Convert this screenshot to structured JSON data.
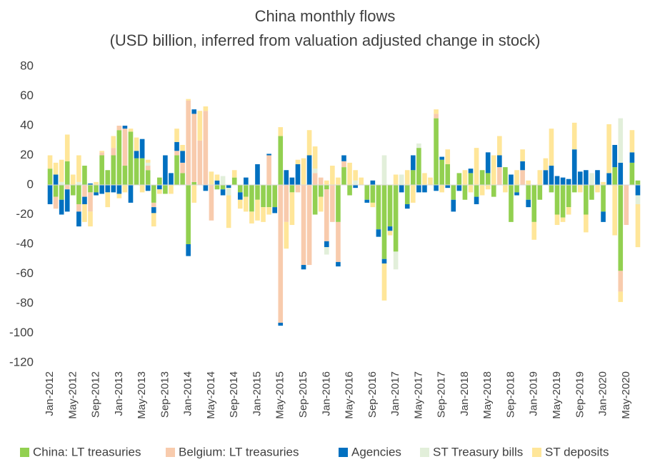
{
  "chart_data": {
    "type": "stacked_bar",
    "title": "China monthly flows",
    "subtitle": "(USD billion, inferred from valuation adjusted change in stock)",
    "categories": [
      "Jan-2012",
      null,
      null,
      null,
      "May-2012",
      null,
      null,
      null,
      "Sep-2012",
      null,
      null,
      null,
      "Jan-2013",
      null,
      null,
      null,
      "May-2013",
      null,
      null,
      null,
      "Sep-2013",
      null,
      null,
      null,
      "Jan-2014",
      null,
      null,
      null,
      "May-2014",
      null,
      null,
      null,
      "Sep-2014",
      null,
      null,
      null,
      "Jan-2015",
      null,
      null,
      null,
      "May-2015",
      null,
      null,
      null,
      "Sep-2015",
      null,
      null,
      null,
      "Jan-2016",
      null,
      null,
      null,
      "May-2016",
      null,
      null,
      null,
      "Sep-2016",
      null,
      null,
      null,
      "Jan-2017",
      null,
      null,
      null,
      "May-2017",
      null,
      null,
      null,
      "Sep-2017",
      null,
      null,
      null,
      "Jan-2018",
      null,
      null,
      null,
      "May-2018",
      null,
      null,
      null,
      "Sep-2018",
      null,
      null,
      null,
      "Jan-2019",
      null,
      null,
      null,
      "May-2019",
      null,
      null,
      null,
      "Sep-2019",
      null,
      null,
      null,
      "Jan-2020",
      null,
      null,
      null,
      "May-2020",
      null,
      null
    ],
    "series": [
      {
        "name": "China: LT treasuries",
        "color": "#92d050",
        "values": [
          11,
          -8,
          -10,
          16,
          -7,
          -13,
          13,
          -5,
          -5,
          20,
          10,
          20,
          37,
          13,
          36,
          18,
          18,
          10,
          -12,
          5,
          -6,
          0,
          20,
          8,
          -40,
          2,
          0,
          0,
          0,
          -3,
          -3,
          0,
          5,
          -5,
          -8,
          -18,
          -10,
          -15,
          -15,
          -15,
          33,
          0,
          -5,
          0,
          0,
          0,
          -20,
          -8,
          -3,
          0,
          -25,
          12,
          -7,
          0,
          0,
          -10,
          -12,
          -30,
          -50,
          -28,
          -45,
          0,
          -13,
          10,
          25,
          0,
          0,
          45,
          17,
          14,
          -10,
          8,
          -10,
          8,
          -8,
          10,
          8,
          -8,
          0,
          12,
          -25,
          -5,
          0,
          -10,
          -25,
          -10,
          0,
          -5,
          -20,
          -22,
          -15,
          -5,
          0,
          -20,
          -10,
          0,
          -18,
          0,
          12,
          -58,
          0,
          15,
          3
        ]
      },
      {
        "name": "Belgium: LT treasuries",
        "color": "#f8cbad",
        "values": [
          0,
          -8,
          0,
          -3,
          0,
          -5,
          -8,
          -13,
          0,
          2,
          0,
          5,
          3,
          25,
          0,
          0,
          0,
          3,
          -3,
          0,
          0,
          0,
          3,
          7,
          57,
          46,
          30,
          50,
          -24,
          0,
          0,
          0,
          0,
          0,
          0,
          0,
          0,
          0,
          20,
          0,
          -93,
          -25,
          0,
          -5,
          -54,
          -54,
          8,
          5,
          -35,
          -25,
          -27,
          4,
          0,
          0,
          0,
          0,
          0,
          0,
          0,
          0,
          0,
          0,
          0,
          0,
          0,
          0,
          0,
          3,
          0,
          0,
          0,
          0,
          0,
          0,
          0,
          0,
          0,
          0,
          12,
          0,
          0,
          0,
          10,
          0,
          0,
          0,
          0,
          0,
          0,
          0,
          0,
          0,
          0,
          0,
          0,
          0,
          0,
          0,
          0,
          -14,
          -27,
          0,
          0
        ]
      },
      {
        "name": "Agencies",
        "color": "#0070c0",
        "values": [
          -13,
          7,
          -10,
          -15,
          0,
          -10,
          -5,
          1,
          -2,
          -6,
          -5,
          -5,
          -6,
          2,
          -12,
          5,
          13,
          -4,
          -4,
          -3,
          20,
          8,
          6,
          8,
          -8,
          3,
          0,
          -4,
          0,
          3,
          -4,
          -2,
          0,
          -5,
          5,
          0,
          14,
          0,
          1,
          -4,
          -2,
          10,
          5,
          14,
          -3,
          20,
          0,
          0,
          -4,
          0,
          -3,
          4,
          0,
          -2,
          0,
          -2,
          3,
          -5,
          -3,
          -3,
          0,
          -5,
          -3,
          10,
          -5,
          -5,
          0,
          -4,
          2,
          -2,
          -8,
          -4,
          0,
          3,
          -5,
          0,
          14,
          0,
          8,
          0,
          7,
          -2,
          6,
          -5,
          0,
          0,
          10,
          13,
          6,
          5,
          4,
          24,
          9,
          10,
          0,
          10,
          -7,
          8,
          15,
          15,
          0,
          7,
          -7
        ]
      },
      {
        "name": "ST Treasury bills",
        "color": "#e2efda",
        "values": [
          0,
          0,
          2,
          0,
          0,
          2,
          0,
          0,
          0,
          0,
          0,
          0,
          0,
          0,
          0,
          0,
          0,
          2,
          0,
          0,
          0,
          0,
          0,
          0,
          0,
          0,
          0,
          0,
          0,
          0,
          6,
          -5,
          0,
          0,
          0,
          0,
          0,
          0,
          0,
          0,
          0,
          0,
          0,
          0,
          0,
          0,
          3,
          0,
          -5,
          0,
          0,
          0,
          0,
          3,
          0,
          0,
          0,
          0,
          20,
          0,
          -12,
          7,
          0,
          0,
          3,
          0,
          0,
          0,
          0,
          0,
          0,
          0,
          0,
          0,
          0,
          0,
          0,
          0,
          0,
          0,
          0,
          0,
          0,
          0,
          0,
          0,
          0,
          0,
          0,
          0,
          0,
          0,
          0,
          0,
          8,
          0,
          0,
          0,
          0,
          30,
          0,
          0,
          -6
        ]
      },
      {
        "name": "ST deposits",
        "color": "#ffe699",
        "values": [
          9,
          8,
          15,
          18,
          7,
          18,
          -12,
          -10,
          2,
          1,
          -10,
          8,
          -3,
          -5,
          2,
          9,
          -5,
          2,
          -9,
          -3,
          0,
          -6,
          9,
          4,
          1,
          -12,
          20,
          3,
          9,
          4,
          0,
          -22,
          5,
          -6,
          -10,
          -8,
          -14,
          -10,
          -5,
          0,
          6,
          -18,
          -22,
          3,
          18,
          17,
          15,
          -10,
          3,
          13,
          5,
          0,
          15,
          7,
          5,
          0,
          -3,
          0,
          -25,
          -3,
          7,
          0,
          10,
          -12,
          0,
          8,
          5,
          3,
          -5,
          10,
          0,
          0,
          10,
          -5,
          25,
          -7,
          -3,
          20,
          13,
          -5,
          0,
          10,
          8,
          3,
          -12,
          10,
          8,
          25,
          -7,
          -3,
          -5,
          18,
          -5,
          -12,
          0,
          -5,
          2,
          33,
          -34,
          -7,
          0,
          15,
          -29
        ]
      }
    ],
    "ylim": [
      -120,
      80
    ],
    "yticks": [
      -120,
      -100,
      -80,
      -60,
      -40,
      -20,
      0,
      20,
      40,
      60,
      80
    ]
  }
}
